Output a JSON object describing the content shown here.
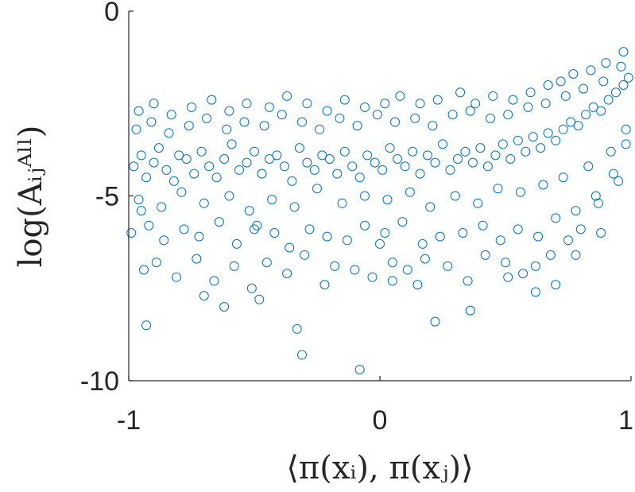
{
  "chart_data": {
    "type": "scatter",
    "title": "",
    "xlabel": "⟨π(xᵢ), π(xⱼ)⟩",
    "ylabel": "log(Aᵢⱼᴬˡˡ)",
    "xlim": [
      -1,
      1
    ],
    "ylim": [
      -10,
      0
    ],
    "xticks": [
      -1,
      0,
      1
    ],
    "xtick_labels": [
      "-1",
      "0",
      "1"
    ],
    "yticks": [
      0,
      -5,
      -10
    ],
    "ytick_labels": [
      "0",
      "-5",
      "-10"
    ],
    "grid": false,
    "marker": "open-circle",
    "color": "#0072BD",
    "series": [
      {
        "x": [
          -0.98,
          -0.95,
          -0.93,
          -0.9,
          -0.88,
          -0.85,
          -0.82,
          -0.8,
          -0.77,
          -0.74,
          -0.71,
          -0.68,
          -0.65,
          -0.62,
          -0.59,
          -0.56,
          -0.53,
          -0.5,
          -0.47,
          -0.44,
          -0.41,
          -0.38,
          -0.35,
          -0.32,
          -0.29,
          -0.26,
          -0.23,
          -0.2,
          -0.17,
          -0.14,
          -0.11,
          -0.08,
          -0.05,
          -0.02,
          0.01,
          0.04,
          0.07,
          0.1,
          0.13,
          0.16,
          0.19,
          0.22,
          0.25,
          0.28,
          0.31,
          0.34,
          0.37,
          0.4,
          0.43,
          0.46,
          0.49,
          0.52,
          0.55,
          0.58,
          0.61,
          0.64,
          0.67,
          0.7,
          0.73,
          0.76,
          0.79,
          0.82,
          0.85,
          0.88,
          0.91,
          0.94,
          0.97,
          0.99,
          -0.97,
          -0.91,
          -0.84,
          -0.76,
          -0.69,
          -0.61,
          -0.54,
          -0.46,
          -0.39,
          -0.31,
          -0.24,
          -0.16,
          -0.09,
          -0.01,
          0.06,
          0.14,
          0.21,
          0.29,
          0.36,
          0.44,
          0.51,
          0.59,
          0.66,
          0.74,
          0.81,
          0.89,
          0.96,
          -0.96,
          -0.87,
          -0.79,
          -0.7,
          -0.6,
          -0.52,
          -0.43,
          -0.34,
          -0.25,
          -0.15,
          -0.06,
          0.03,
          0.12,
          0.2,
          0.3,
          0.39,
          0.47,
          0.56,
          0.65,
          0.73,
          0.83,
          0.92,
          0.98,
          -0.99,
          -0.92,
          -0.86,
          -0.78,
          -0.72,
          -0.64,
          -0.57,
          -0.49,
          -0.42,
          -0.36,
          -0.28,
          -0.21,
          -0.13,
          -0.06,
          0.02,
          0.09,
          0.17,
          0.24,
          0.33,
          0.41,
          0.48,
          0.55,
          0.63,
          0.7,
          0.78,
          0.86,
          0.93,
          0.98,
          -0.94,
          -0.89,
          -0.81,
          -0.73,
          -0.66,
          -0.58,
          -0.51,
          -0.45,
          -0.37,
          -0.3,
          -0.22,
          -0.18,
          -0.1,
          -0.03,
          0.05,
          0.11,
          0.18,
          0.27,
          0.35,
          0.42,
          0.5,
          0.57,
          0.62,
          0.68,
          0.75,
          0.8,
          0.87,
          0.95,
          -0.96,
          -0.9,
          -0.83,
          -0.75,
          -0.67,
          -0.6,
          -0.53,
          -0.44,
          -0.37,
          -0.29,
          -0.21,
          -0.14,
          -0.06,
          0.02,
          0.08,
          0.16,
          0.23,
          0.32,
          0.38,
          0.45,
          0.53,
          0.6,
          0.67,
          0.72,
          0.77,
          0.84,
          0.9,
          0.97,
          -0.93,
          -0.7,
          -0.62,
          -0.48,
          -0.33,
          -0.31,
          -0.08,
          0.05,
          0.15,
          0.22,
          0.36,
          0.51,
          0.62,
          0.7,
          0.78,
          0.88,
          -0.95,
          -0.5,
          0.0
        ],
        "y": [
          -4.2,
          -3.9,
          -4.5,
          -4.1,
          -3.7,
          -4.3,
          -4.6,
          -3.9,
          -4.0,
          -4.4,
          -3.8,
          -4.2,
          -4.5,
          -4.0,
          -3.6,
          -4.3,
          -4.1,
          -3.8,
          -4.4,
          -4.0,
          -3.9,
          -4.2,
          -4.6,
          -3.7,
          -4.1,
          -4.3,
          -3.9,
          -4.0,
          -4.4,
          -3.8,
          -4.2,
          -4.5,
          -3.9,
          -4.1,
          -4.3,
          -3.7,
          -4.0,
          -4.2,
          -3.8,
          -4.4,
          -3.9,
          -4.1,
          -3.6,
          -4.3,
          -4.0,
          -3.8,
          -4.1,
          -3.7,
          -4.2,
          -3.9,
          -3.6,
          -4.0,
          -3.5,
          -3.8,
          -3.4,
          -3.7,
          -3.3,
          -3.5,
          -3.2,
          -3.0,
          -3.1,
          -2.8,
          -2.6,
          -2.7,
          -2.4,
          -2.2,
          -2.0,
          -1.8,
          -3.2,
          -3.0,
          -3.3,
          -3.1,
          -2.9,
          -3.2,
          -3.0,
          -3.1,
          -2.8,
          -3.0,
          -3.2,
          -2.9,
          -3.1,
          -2.8,
          -3.0,
          -2.9,
          -3.1,
          -2.8,
          -2.7,
          -2.9,
          -2.8,
          -2.6,
          -2.5,
          -2.3,
          -2.1,
          -1.9,
          -1.5,
          -5.1,
          -5.3,
          -4.9,
          -5.2,
          -5.0,
          -5.4,
          -5.1,
          -5.3,
          -4.8,
          -5.2,
          -5.0,
          -5.1,
          -4.9,
          -5.3,
          -5.0,
          -5.2,
          -4.8,
          -4.9,
          -4.7,
          -4.5,
          -4.2,
          -3.8,
          -3.2,
          -6.0,
          -5.8,
          -6.2,
          -5.9,
          -6.1,
          -5.7,
          -6.3,
          -5.8,
          -6.0,
          -6.4,
          -5.9,
          -6.1,
          -6.2,
          -5.8,
          -6.0,
          -5.7,
          -6.3,
          -6.1,
          -6.0,
          -5.8,
          -6.2,
          -5.9,
          -6.1,
          -5.6,
          -5.4,
          -5.0,
          -4.4,
          -3.6,
          -7.0,
          -6.8,
          -7.2,
          -6.7,
          -7.3,
          -6.9,
          -7.5,
          -6.8,
          -7.1,
          -6.6,
          -7.4,
          -6.9,
          -7.0,
          -7.2,
          -6.8,
          -7.0,
          -6.7,
          -6.9,
          -7.3,
          -6.6,
          -6.8,
          -7.1,
          -6.9,
          -6.6,
          -6.2,
          -5.9,
          -5.2,
          -4.6,
          -2.7,
          -2.5,
          -2.8,
          -2.6,
          -2.4,
          -2.7,
          -2.5,
          -2.6,
          -2.3,
          -2.5,
          -2.7,
          -2.4,
          -2.6,
          -2.5,
          -2.3,
          -2.5,
          -2.4,
          -2.2,
          -2.5,
          -2.3,
          -2.4,
          -2.2,
          -2.0,
          -1.9,
          -1.7,
          -1.6,
          -1.4,
          -1.1,
          -8.5,
          -7.7,
          -8.0,
          -7.8,
          -8.6,
          -9.3,
          -9.7,
          -7.3,
          -7.4,
          -8.4,
          -8.1,
          -7.2,
          -7.6,
          -7.4,
          -6.6,
          -6.0,
          -5.4,
          -5.9,
          -6.3
        ]
      }
    ]
  }
}
